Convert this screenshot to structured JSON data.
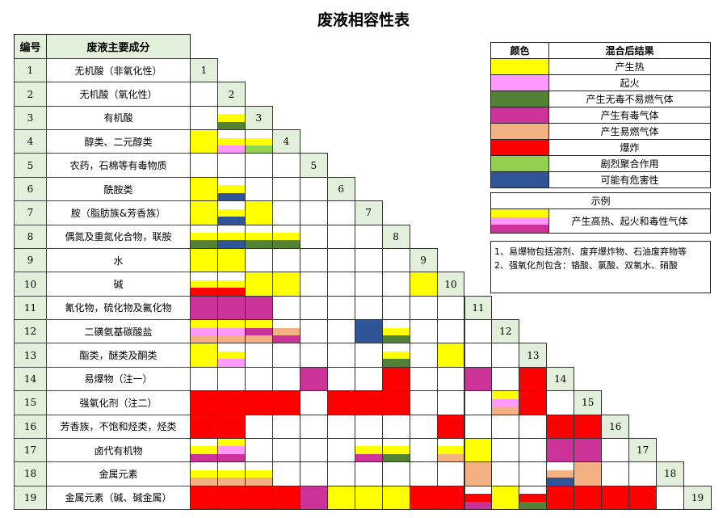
{
  "title": "废液相容性表",
  "header": {
    "num": "编号",
    "name": "废液主要成分"
  },
  "rows": [
    {
      "num": "1",
      "name": "无机酸（非氧化性）"
    },
    {
      "num": "2",
      "name": "无机酸（氧化性）"
    },
    {
      "num": "3",
      "name": "有机酸"
    },
    {
      "num": "4",
      "name": "醇类、二元醇类"
    },
    {
      "num": "5",
      "name": "农药，石棉等有毒物质"
    },
    {
      "num": "6",
      "name": "酰胺类"
    },
    {
      "num": "7",
      "name": "胺（脂肪族&芳香族）"
    },
    {
      "num": "8",
      "name": "偶氮及重氮化合物，联胺"
    },
    {
      "num": "9",
      "name": "水"
    },
    {
      "num": "10",
      "name": "碱"
    },
    {
      "num": "11",
      "name": "氰化物，硫化物及氟化物"
    },
    {
      "num": "12",
      "name": "二磺氨基碳酸盐"
    },
    {
      "num": "13",
      "name": "酯类，醚类及酮类"
    },
    {
      "num": "14",
      "name": "易爆物（注一）"
    },
    {
      "num": "15",
      "name": "强氧化剂（注二）"
    },
    {
      "num": "16",
      "name": "芳香族，不饱和烃类，烃类"
    },
    {
      "num": "17",
      "name": "卤代有机物"
    },
    {
      "num": "18",
      "name": "金属元素"
    },
    {
      "num": "19",
      "name": "金属元素（碱、碱金属）"
    }
  ],
  "colors": {
    "H": "#ffff00",
    "F": "#ff99ff",
    "G": "#538135",
    "T": "#cc3399",
    "Fl": "#f4b183",
    "E": "#ff0000",
    "P": "#92d050",
    "U": "#2f5597",
    "": "#ffffff"
  },
  "legend": {
    "col_color": "颜色",
    "col_result": "混合后结果",
    "items": [
      {
        "code": "H",
        "label": "产生热"
      },
      {
        "code": "F",
        "label": "起火"
      },
      {
        "code": "G",
        "label": "产生无毒不易燃气体"
      },
      {
        "code": "T",
        "label": "产生有毒气体"
      },
      {
        "code": "Fl",
        "label": "产生易燃气体"
      },
      {
        "code": "E",
        "label": "爆炸"
      },
      {
        "code": "P",
        "label": "剧烈聚合作用"
      },
      {
        "code": "U",
        "label": "可能有危害性"
      }
    ],
    "example_title": "示例",
    "example_codes": [
      "H",
      "F",
      "T"
    ],
    "example_label": "产生高热、起火和毒性气体"
  },
  "notes": [
    "1、易爆物包括溶剂、废弃爆炸物、石油废弃物等",
    "2、强氧化剂包含：铬酸、氯酸、双氧水、硝酸"
  ],
  "matrix": [
    [],
    [
      []
    ],
    [
      [],
      [
        "",
        "H",
        "G"
      ]
    ],
    [
      [
        "H"
      ],
      [
        "",
        "H",
        "F"
      ],
      [
        "",
        "H",
        "P"
      ]
    ],
    [
      [],
      [],
      [],
      []
    ],
    [
      [
        "H"
      ],
      [
        "",
        "H",
        "U"
      ],
      [],
      [],
      []
    ],
    [
      [
        "H"
      ],
      [
        "",
        "H",
        "U"
      ],
      [
        "H"
      ],
      [],
      [],
      []
    ],
    [
      [
        "",
        "H",
        "G"
      ],
      [
        "",
        "H",
        "U"
      ],
      [
        "",
        "H",
        "G"
      ],
      [
        "",
        "H",
        "G"
      ],
      [],
      [],
      []
    ],
    [
      [
        "H"
      ],
      [
        "H"
      ],
      [],
      [],
      [],
      [],
      [],
      []
    ],
    [
      [
        "",
        "H",
        "E"
      ],
      [
        "",
        "H",
        "E"
      ],
      [
        "H"
      ],
      [
        "H"
      ],
      [],
      [],
      [],
      [],
      [
        "H"
      ]
    ],
    [
      [
        "T"
      ],
      [
        "T"
      ],
      [
        "T"
      ],
      [],
      [],
      [],
      [],
      [],
      [],
      []
    ],
    [
      [
        "H",
        "F",
        "Fl"
      ],
      [
        "H",
        "F",
        "Fl"
      ],
      [
        "H",
        "T",
        "Fl"
      ],
      [
        "",
        "Fl",
        "T"
      ],
      [],
      [],
      [
        "U"
      ],
      [
        "",
        "H",
        "G"
      ],
      [],
      [],
      []
    ],
    [
      [
        "H"
      ],
      [
        "",
        "H",
        "F"
      ],
      [],
      [],
      [],
      [],
      [],
      [
        "",
        "H",
        "G"
      ],
      [],
      [
        "H"
      ],
      [],
      []
    ],
    [
      [],
      [],
      [],
      [],
      [
        "T"
      ],
      [],
      [],
      [
        "E"
      ],
      [],
      [],
      [
        "T"
      ],
      [],
      [
        "E"
      ]
    ],
    [
      [
        "E"
      ],
      [
        "E"
      ],
      [
        "E"
      ],
      [
        "E"
      ],
      [],
      [
        "E"
      ],
      [
        "E"
      ],
      [
        "E"
      ],
      [],
      [],
      [],
      [
        "H",
        "F",
        "Fl"
      ],
      [
        "E"
      ],
      []
    ],
    [
      [
        "E"
      ],
      [
        "E"
      ],
      [],
      [],
      [],
      [],
      [],
      [],
      [],
      [
        "E"
      ],
      [],
      [],
      [],
      [
        "E"
      ],
      [
        "E"
      ]
    ],
    [
      [
        "",
        "H",
        "T"
      ],
      [
        "H",
        "F",
        "T"
      ],
      [],
      [],
      [],
      [],
      [
        "",
        "H",
        "T"
      ],
      [
        "",
        "H",
        "G"
      ],
      [],
      [
        "",
        "H",
        "Fl"
      ],
      [
        "H"
      ],
      [],
      [],
      [
        "T"
      ],
      [
        "T"
      ],
      []
    ],
    [
      [
        "",
        "H",
        "Fl"
      ],
      [
        "",
        "H",
        "Fl"
      ],
      [
        "",
        "H",
        "Fl"
      ],
      [],
      [],
      [],
      [],
      [],
      [],
      [],
      [
        "Fl"
      ],
      [],
      [],
      [
        "",
        "Fl",
        "U"
      ],
      [
        "Fl"
      ],
      [],
      []
    ],
    [
      [
        "E"
      ],
      [
        "E"
      ],
      [
        "E"
      ],
      [
        "E"
      ],
      [
        "T"
      ],
      [
        "H"
      ],
      [
        "H"
      ],
      [
        "H"
      ],
      [
        "E"
      ],
      [
        "E"
      ],
      [
        "",
        "E",
        "T"
      ],
      [
        "H"
      ],
      [
        "",
        "E",
        "G"
      ],
      [
        "E"
      ],
      [
        "E"
      ],
      [
        "E"
      ],
      [
        "E"
      ],
      []
    ]
  ]
}
